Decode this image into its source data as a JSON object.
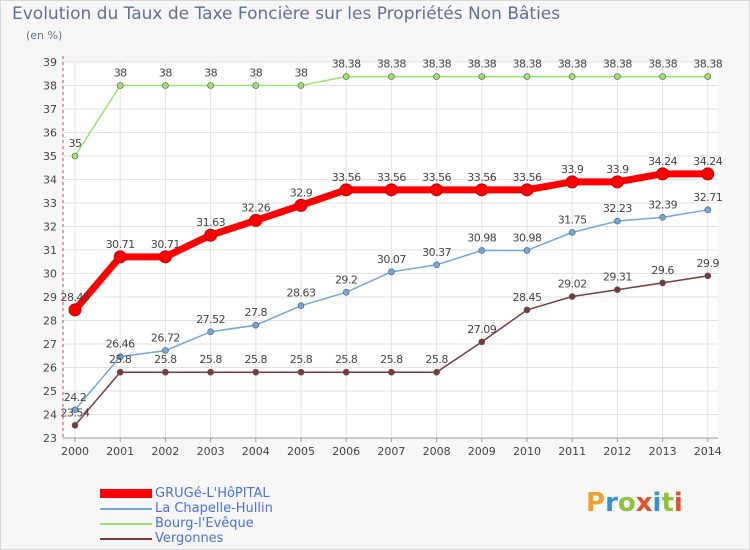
{
  "title": "Evolution du Taux de Taxe Foncière sur les Propriétés Non Bâties",
  "unit_label": "(en %)",
  "logo": "Proxiti",
  "chart_data": {
    "type": "line",
    "title": "Evolution du Taux de Taxe Foncière sur les Propriétés Non Bâties",
    "ylabel": "(en %)",
    "xlabel": "",
    "ylim": [
      23,
      39
    ],
    "yticks": [
      23,
      24,
      25,
      26,
      27,
      28,
      29,
      30,
      31,
      32,
      33,
      34,
      35,
      36,
      37,
      38,
      39
    ],
    "x": [
      "2000",
      "2001",
      "2002",
      "2003",
      "2004",
      "2005",
      "2006",
      "2007",
      "2008",
      "2009",
      "2010",
      "2011",
      "2012",
      "2013",
      "2014"
    ],
    "legend_position": "bottom-left",
    "series": [
      {
        "name": "GRUGé-L'HôPITAL",
        "color": "#ff0000",
        "labels": [
          "28.45",
          "30.71",
          "30.71",
          "31.63",
          "32.26",
          "32.9",
          "33.56",
          "33.56",
          "33.56",
          "33.56",
          "33.56",
          "33.9",
          "33.9",
          "34.24",
          "34.24"
        ],
        "values": [
          28.45,
          30.71,
          30.71,
          31.63,
          32.26,
          32.9,
          33.56,
          33.56,
          33.56,
          33.56,
          33.56,
          33.9,
          33.9,
          34.24,
          34.24
        ]
      },
      {
        "name": "La Chapelle-Hullin",
        "color": "#6fa8dc",
        "labels": [
          "24.2",
          "26.46",
          "26.72",
          "27.52",
          "27.8",
          "28.63",
          "29.2",
          "30.07",
          "30.37",
          "30.98",
          "30.98",
          "31.75",
          "32.23",
          "32.39",
          "32.71"
        ],
        "values": [
          24.2,
          26.46,
          26.72,
          27.52,
          27.8,
          28.63,
          29.2,
          30.07,
          30.37,
          30.98,
          30.98,
          31.75,
          32.23,
          32.39,
          32.71
        ]
      },
      {
        "name": "Bourg-l'Evêque",
        "color": "#9be26f",
        "labels": [
          "35",
          "38",
          "38",
          "38",
          "38",
          "38",
          "38.38",
          "38.38",
          "38.38",
          "38.38",
          "38.38",
          "38.38",
          "38.38",
          "38.38",
          "38.38"
        ],
        "values": [
          35,
          38,
          38,
          38,
          38,
          38,
          38.38,
          38.38,
          38.38,
          38.38,
          38.38,
          38.38,
          38.38,
          38.38,
          38.38
        ]
      },
      {
        "name": "Vergonnes",
        "color": "#7a3a3a",
        "labels": [
          "23.54",
          "25.8",
          "25.8",
          "25.8",
          "25.8",
          "25.8",
          "25.8",
          "25.8",
          "25.8",
          "27.09",
          "28.45",
          "29.02",
          "29.31",
          "29.6",
          "29.9"
        ],
        "values": [
          23.54,
          25.8,
          25.8,
          25.8,
          25.8,
          25.8,
          25.8,
          25.8,
          25.8,
          27.09,
          28.45,
          29.02,
          29.31,
          29.6,
          29.9
        ]
      }
    ]
  }
}
